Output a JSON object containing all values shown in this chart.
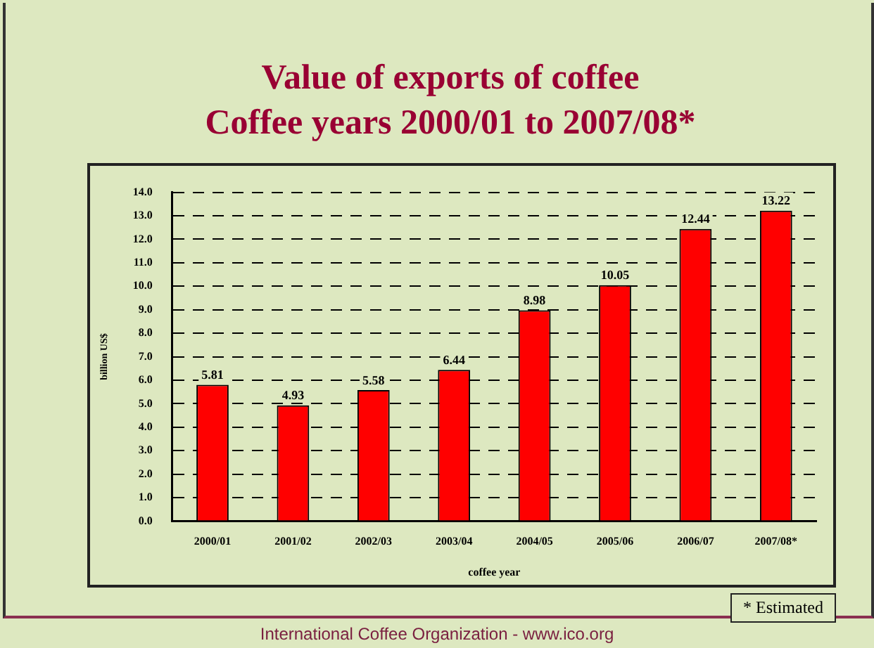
{
  "chart_data": {
    "type": "bar",
    "title": "Value of exports of coffee\nCoffee years 2000/01 to 2007/08*",
    "xlabel": "coffee year",
    "ylabel": "billion US$",
    "categories": [
      "2000/01",
      "2001/02",
      "2002/03",
      "2003/04",
      "2004/05",
      "2005/06",
      "2006/07",
      "2007/08*"
    ],
    "values": [
      5.81,
      4.93,
      5.58,
      6.44,
      8.98,
      10.05,
      12.44,
      13.22
    ],
    "color": "#ff0000",
    "data_labels": true,
    "ylim": [
      0,
      14
    ],
    "yticks": [
      {
        "value": 0,
        "label": "0.0"
      },
      {
        "value": 1,
        "label": "1.0"
      },
      {
        "value": 2,
        "label": "2.0"
      },
      {
        "value": 3,
        "label": "3.0"
      },
      {
        "value": 4,
        "label": "4.0"
      },
      {
        "value": 5,
        "label": "5.0"
      },
      {
        "value": 6,
        "label": "6.0"
      },
      {
        "value": 7,
        "label": "7.0"
      },
      {
        "value": 8,
        "label": "8.0"
      },
      {
        "value": 9,
        "label": "9.0"
      },
      {
        "value": 10,
        "label": "10.0"
      },
      {
        "value": 11,
        "label": "11.0"
      },
      {
        "value": 12,
        "label": "12.0"
      },
      {
        "value": 13,
        "label": "13.0"
      },
      {
        "value": 14,
        "label": "14.0"
      }
    ],
    "grid": "y",
    "legend": false,
    "line_style": "dashed",
    "annotations": [
      "* Estimated",
      "International Coffee Organization  -  www.ico.org"
    ]
  }
}
